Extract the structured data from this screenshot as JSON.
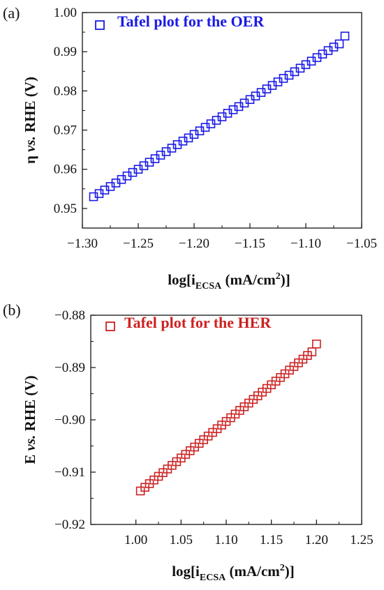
{
  "chart_data": [
    {
      "type": "scatter",
      "panel_label": "(a)",
      "legend": "Tafel plot for the OER",
      "color": "#1a1ae6",
      "xlabel": {
        "main": "log[i",
        "sub": "ECSA",
        "unit": " (mA/cm",
        "sup": "2",
        "close": ")]"
      },
      "ylabel": {
        "a": "η ",
        "b": "vs.",
        "c": " RHE (V)"
      },
      "xlim": [
        -1.3,
        -1.05
      ],
      "ylim": [
        0.945,
        1.0
      ],
      "xticks": [
        -1.3,
        -1.25,
        -1.2,
        -1.15,
        -1.1,
        -1.05
      ],
      "xtick_labels": [
        "−1.30",
        "−1.25",
        "−1.20",
        "−1.15",
        "−1.10",
        "−1.05"
      ],
      "yticks": [
        0.95,
        0.96,
        0.97,
        0.98,
        0.99,
        1.0
      ],
      "ytick_labels": [
        "0.95",
        "0.96",
        "0.97",
        "0.98",
        "0.99",
        "1.00"
      ],
      "x": [
        -1.29,
        -1.285,
        -1.28,
        -1.275,
        -1.27,
        -1.265,
        -1.26,
        -1.255,
        -1.25,
        -1.245,
        -1.24,
        -1.235,
        -1.23,
        -1.225,
        -1.22,
        -1.215,
        -1.21,
        -1.205,
        -1.2,
        -1.195,
        -1.19,
        -1.185,
        -1.18,
        -1.175,
        -1.17,
        -1.165,
        -1.16,
        -1.155,
        -1.15,
        -1.145,
        -1.14,
        -1.135,
        -1.13,
        -1.125,
        -1.12,
        -1.115,
        -1.11,
        -1.105,
        -1.1,
        -1.095,
        -1.09,
        -1.085,
        -1.08,
        -1.075,
        -1.07,
        -1.065
      ],
      "y": [
        0.953,
        0.9538,
        0.9547,
        0.9556,
        0.9565,
        0.9574,
        0.9583,
        0.9592,
        0.96,
        0.9609,
        0.9618,
        0.9627,
        0.9636,
        0.9645,
        0.9654,
        0.9663,
        0.9672,
        0.968,
        0.9689,
        0.9698,
        0.9707,
        0.9716,
        0.9725,
        0.9734,
        0.9743,
        0.9752,
        0.976,
        0.9769,
        0.9778,
        0.9787,
        0.9796,
        0.9805,
        0.9814,
        0.9823,
        0.9832,
        0.984,
        0.9849,
        0.9858,
        0.9867,
        0.9876,
        0.9885,
        0.9894,
        0.9903,
        0.9912,
        0.992,
        0.994
      ]
    },
    {
      "type": "scatter",
      "panel_label": "(b)",
      "legend": "Tafel plot for the HER",
      "color": "#cc2222",
      "xlabel": {
        "main": "log[i",
        "sub": "ECSA",
        "unit": " (mA/cm",
        "sup": "2",
        "close": ")]"
      },
      "ylabel": {
        "a": "E ",
        "b": "vs.",
        "c": " RHE (V)"
      },
      "xlim": [
        0.95,
        1.25
      ],
      "ylim": [
        -0.92,
        -0.88
      ],
      "xticks": [
        1.0,
        1.05,
        1.1,
        1.15,
        1.2,
        1.25
      ],
      "xtick_labels": [
        "1.00",
        "1.05",
        "1.10",
        "1.15",
        "1.20",
        "1.25"
      ],
      "yticks": [
        -0.92,
        -0.91,
        -0.9,
        -0.89,
        -0.88
      ],
      "ytick_labels": [
        "−0.92",
        "−0.91",
        "−0.90",
        "−0.89",
        "−0.88"
      ],
      "x": [
        1.005,
        1.01,
        1.015,
        1.02,
        1.025,
        1.03,
        1.035,
        1.04,
        1.045,
        1.05,
        1.055,
        1.06,
        1.065,
        1.07,
        1.075,
        1.08,
        1.085,
        1.09,
        1.095,
        1.1,
        1.105,
        1.11,
        1.115,
        1.12,
        1.125,
        1.13,
        1.135,
        1.14,
        1.145,
        1.15,
        1.155,
        1.16,
        1.165,
        1.17,
        1.175,
        1.18,
        1.185,
        1.19,
        1.195,
        1.2
      ],
      "y": [
        -0.9136,
        -0.9129,
        -0.9122,
        -0.9115,
        -0.9108,
        -0.9101,
        -0.9094,
        -0.9087,
        -0.908,
        -0.9073,
        -0.9066,
        -0.9059,
        -0.9052,
        -0.9045,
        -0.9038,
        -0.9031,
        -0.9024,
        -0.9017,
        -0.901,
        -0.9003,
        -0.8996,
        -0.8989,
        -0.8982,
        -0.8975,
        -0.8968,
        -0.8961,
        -0.8954,
        -0.8947,
        -0.894,
        -0.8933,
        -0.8926,
        -0.8919,
        -0.8912,
        -0.8905,
        -0.8898,
        -0.8891,
        -0.8884,
        -0.8877,
        -0.887,
        -0.8855
      ]
    }
  ]
}
